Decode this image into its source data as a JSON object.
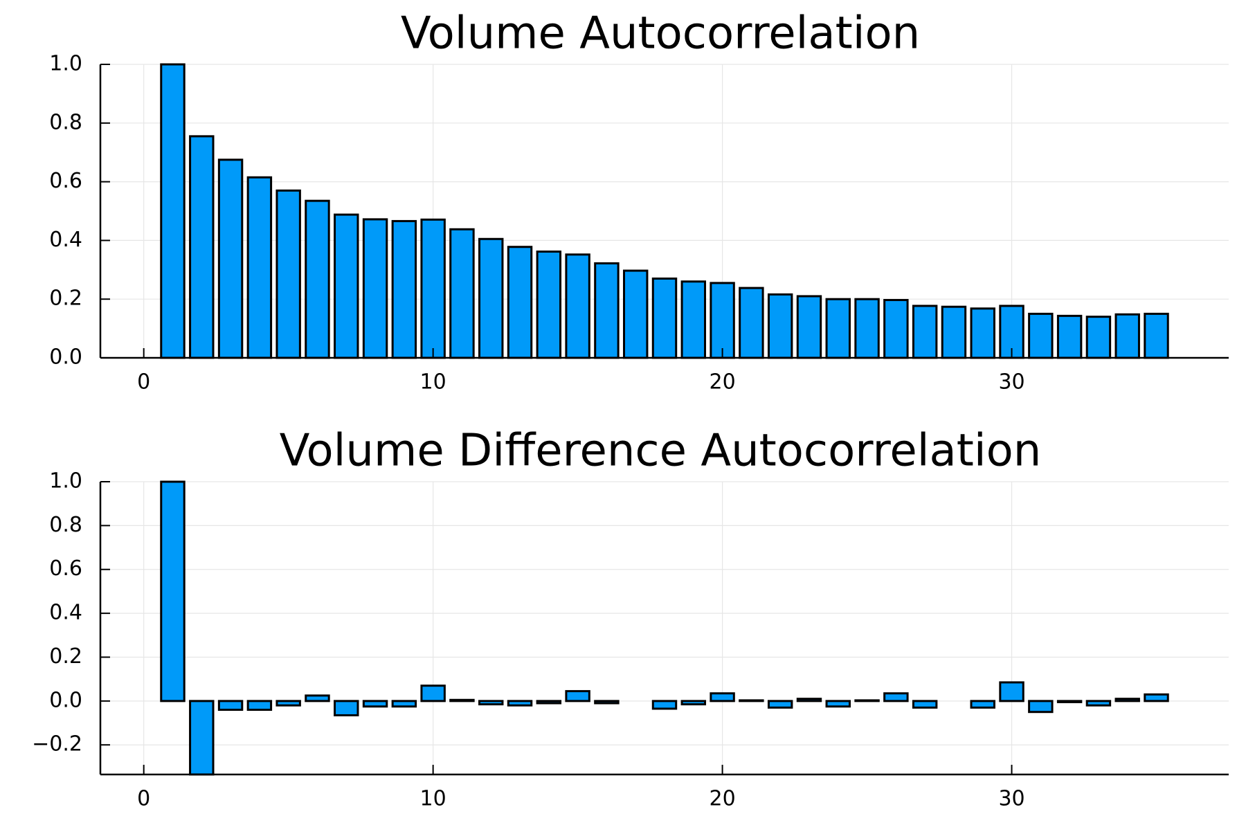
{
  "chart_data": [
    {
      "type": "bar",
      "title": "Volume Autocorrelation",
      "xlabel": "",
      "ylabel": "",
      "xlim": [
        -1.5,
        37.5
      ],
      "ylim": [
        0.0,
        1.0
      ],
      "x_ticks": [
        0,
        10,
        20,
        30
      ],
      "x_tick_labels": [
        "0",
        "10",
        "20",
        "30"
      ],
      "y_ticks": [
        0.0,
        0.2,
        0.4,
        0.6,
        0.8,
        1.0
      ],
      "y_tick_labels": [
        "0.0",
        "0.2",
        "0.4",
        "0.6",
        "0.8",
        "1.0"
      ],
      "grid": true,
      "legend": "none",
      "bar_color": "#009af9",
      "x": [
        0,
        1,
        2,
        3,
        4,
        5,
        6,
        7,
        8,
        9,
        10,
        11,
        12,
        13,
        14,
        15,
        16,
        17,
        18,
        19,
        20,
        21,
        22,
        23,
        24,
        25,
        26,
        27,
        28,
        29,
        30,
        31,
        32,
        33,
        34,
        35
      ],
      "values": [
        0.0,
        1.0,
        0.755,
        0.675,
        0.615,
        0.57,
        0.535,
        0.488,
        0.472,
        0.466,
        0.471,
        0.438,
        0.405,
        0.378,
        0.362,
        0.352,
        0.322,
        0.297,
        0.27,
        0.26,
        0.255,
        0.238,
        0.216,
        0.21,
        0.2,
        0.2,
        0.197,
        0.177,
        0.174,
        0.168,
        0.177,
        0.15,
        0.143,
        0.14,
        0.148,
        0.15
      ]
    },
    {
      "type": "bar",
      "title": "Volume Difference Autocorrelation",
      "xlabel": "",
      "ylabel": "",
      "xlim": [
        -1.5,
        37.5
      ],
      "ylim": [
        -0.335,
        1.0
      ],
      "x_ticks": [
        0,
        10,
        20,
        30
      ],
      "x_tick_labels": [
        "0",
        "10",
        "20",
        "30"
      ],
      "y_ticks": [
        -0.2,
        0.0,
        0.2,
        0.4,
        0.6,
        0.8,
        1.0
      ],
      "y_tick_labels": [
        "−0.2",
        "0.0",
        "0.2",
        "0.4",
        "0.6",
        "0.8",
        "1.0"
      ],
      "grid": true,
      "legend": "none",
      "bar_color": "#009af9",
      "x": [
        0,
        1,
        2,
        3,
        4,
        5,
        6,
        7,
        8,
        9,
        10,
        11,
        12,
        13,
        14,
        15,
        16,
        17,
        18,
        19,
        20,
        21,
        22,
        23,
        24,
        25,
        26,
        27,
        28,
        29,
        30,
        31,
        32,
        33,
        34,
        35
      ],
      "values": [
        0.0,
        1.0,
        -0.335,
        -0.04,
        -0.04,
        -0.02,
        0.025,
        -0.065,
        -0.025,
        -0.025,
        0.07,
        0.005,
        -0.015,
        -0.02,
        -0.01,
        0.045,
        -0.01,
        0.0,
        -0.035,
        -0.015,
        0.035,
        0.003,
        -0.03,
        0.01,
        -0.025,
        0.003,
        0.035,
        -0.03,
        0.0,
        -0.03,
        0.085,
        -0.05,
        -0.005,
        -0.02,
        0.01,
        0.03
      ]
    }
  ]
}
